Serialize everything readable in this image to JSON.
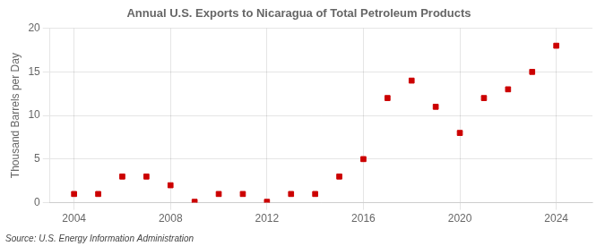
{
  "chart_data": {
    "type": "scatter",
    "title": "Annual U.S. Exports to Nicaragua of Total Petroleum Products",
    "ylabel": "Thousand Barrels per Day",
    "annotation": "Source: U.S. Energy Information Administration",
    "x": [
      2004,
      2005,
      2006,
      2007,
      2008,
      2009,
      2010,
      2011,
      2012,
      2013,
      2014,
      2015,
      2016,
      2017,
      2018,
      2019,
      2020,
      2021,
      2022,
      2023,
      2024
    ],
    "values": [
      1.0,
      1.0,
      3.0,
      3.0,
      2.0,
      0.1,
      1.0,
      1.0,
      0.1,
      1.0,
      1.0,
      3.0,
      5.0,
      12.0,
      14.0,
      11.0,
      8.0,
      12.0,
      13.0,
      15.0,
      18.0
    ],
    "xlim": [
      2003.0,
      2025.5
    ],
    "ylim": [
      0,
      20
    ],
    "xticks": [
      2004,
      2008,
      2012,
      2016,
      2020,
      2024
    ],
    "yticks": [
      0,
      5,
      10,
      15,
      20
    ],
    "color": "#cc0000",
    "marker": "square",
    "grid": true
  }
}
